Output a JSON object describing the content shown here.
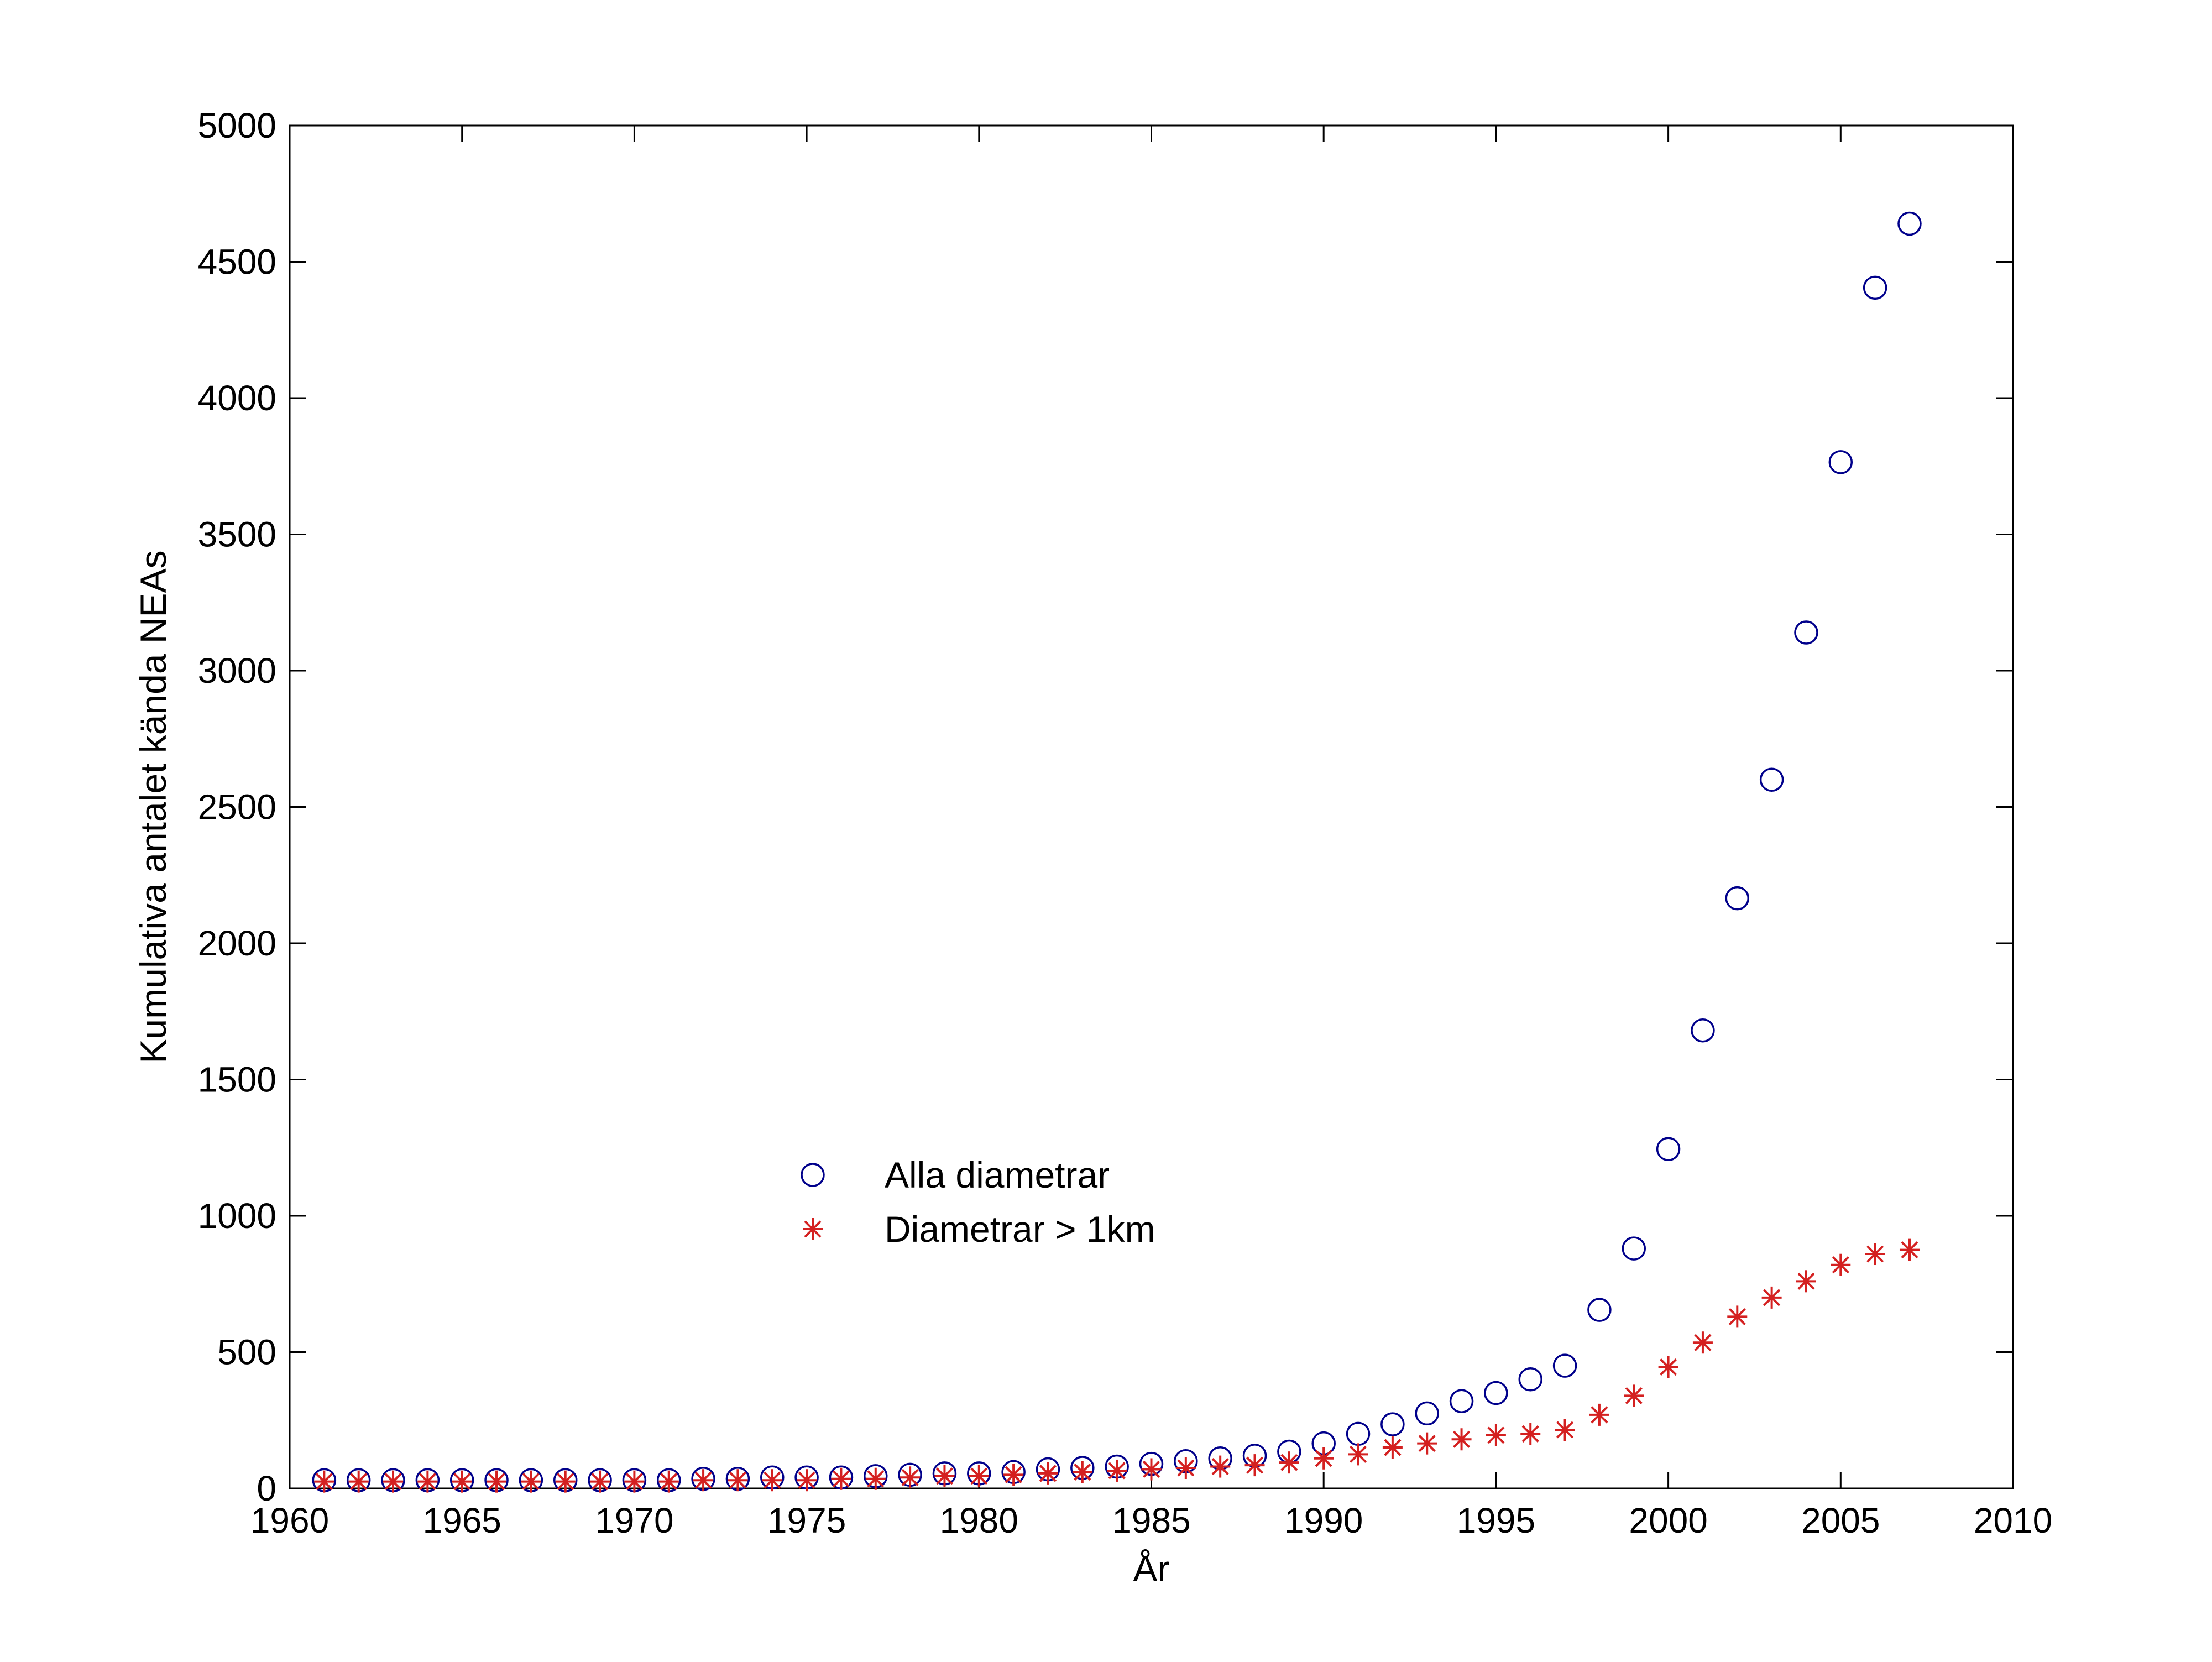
{
  "chart_data": {
    "type": "scatter",
    "title": "",
    "xlabel": "År",
    "ylabel": "Kumulativa antalet kända NEAs",
    "xlim": [
      1960,
      2010
    ],
    "ylim": [
      0,
      5000
    ],
    "xticks": [
      1960,
      1965,
      1970,
      1975,
      1980,
      1985,
      1990,
      1995,
      2000,
      2005,
      2010
    ],
    "yticks": [
      0,
      500,
      1000,
      1500,
      2000,
      2500,
      3000,
      3500,
      4000,
      4500,
      5000
    ],
    "grid": false,
    "legend_position": "center",
    "series": [
      {
        "name": "Alla diametrar",
        "marker": "circle",
        "color": "#00008B",
        "x": [
          1961,
          1962,
          1963,
          1964,
          1965,
          1966,
          1967,
          1968,
          1969,
          1970,
          1971,
          1972,
          1973,
          1974,
          1975,
          1976,
          1977,
          1978,
          1979,
          1980,
          1981,
          1982,
          1983,
          1984,
          1985,
          1986,
          1987,
          1988,
          1989,
          1990,
          1991,
          1992,
          1993,
          1994,
          1995,
          1996,
          1997,
          1998,
          1999,
          2000,
          2001,
          2002,
          2003,
          2004,
          2005,
          2006,
          2007
        ],
        "y": [
          30,
          30,
          30,
          30,
          30,
          30,
          30,
          30,
          30,
          30,
          30,
          35,
          35,
          40,
          40,
          40,
          45,
          50,
          55,
          55,
          60,
          70,
          75,
          80,
          90,
          100,
          110,
          120,
          135,
          165,
          200,
          235,
          275,
          320,
          350,
          400,
          450,
          655,
          880,
          1245,
          1680,
          2165,
          2600,
          3140,
          3765,
          4405,
          4640
        ]
      },
      {
        "name": "Diametrar > 1km",
        "marker": "asterisk",
        "color": "#D42020",
        "x": [
          1961,
          1962,
          1963,
          1964,
          1965,
          1966,
          1967,
          1968,
          1969,
          1970,
          1971,
          1972,
          1973,
          1974,
          1975,
          1976,
          1977,
          1978,
          1979,
          1980,
          1981,
          1982,
          1983,
          1984,
          1985,
          1986,
          1987,
          1988,
          1989,
          1990,
          1991,
          1992,
          1993,
          1994,
          1995,
          1996,
          1997,
          1998,
          1999,
          2000,
          2001,
          2002,
          2003,
          2004,
          2005,
          2006,
          2007
        ],
        "y": [
          25,
          25,
          25,
          25,
          25,
          25,
          25,
          25,
          25,
          25,
          25,
          30,
          30,
          30,
          30,
          35,
          35,
          40,
          45,
          45,
          50,
          55,
          60,
          65,
          70,
          75,
          80,
          85,
          95,
          110,
          125,
          150,
          165,
          180,
          195,
          200,
          215,
          270,
          340,
          445,
          535,
          630,
          700,
          760,
          820,
          860,
          875
        ]
      }
    ]
  }
}
